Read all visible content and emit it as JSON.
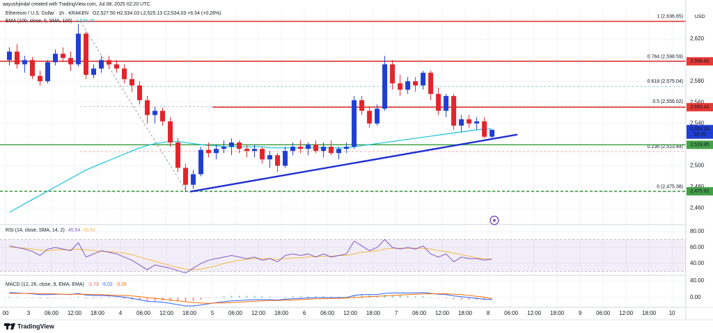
{
  "header": {
    "attribution": "aayushjindal created with TradingView.com, Jul 08, 2025 02:20 UTC",
    "brand": "TradingView"
  },
  "chart_data": {
    "type": "candlestick",
    "title": "Ethereum / U.S. Dollar · 1h · KRAKEN",
    "ohlc_legend": "O2,527.50 H2,534.03 L2,525.13 C2,534.03 +6.54 (+0.26%)",
    "currency": "USD",
    "x": [
      1,
      3,
      5,
      7,
      9,
      11,
      13,
      15,
      17,
      19,
      21,
      23,
      25,
      27,
      29,
      31,
      33,
      35,
      37,
      39,
      41,
      43,
      45,
      47,
      49,
      51,
      53,
      55,
      57,
      59,
      61,
      63,
      65,
      67,
      69,
      71,
      73,
      75,
      77,
      79,
      81,
      83,
      85,
      87,
      89,
      91,
      93,
      95,
      97,
      99,
      101,
      103,
      105,
      107,
      109,
      111,
      113,
      115,
      117,
      119,
      121,
      123,
      125,
      127
    ],
    "open": [
      2600,
      2608,
      2596,
      2600,
      2585,
      2580,
      2598,
      2606,
      2602,
      2596,
      2625,
      2586,
      2592,
      2600,
      2596,
      2592,
      2582,
      2576,
      2562,
      2548,
      2552,
      2542,
      2522,
      2498,
      2482,
      2492,
      2515,
      2512,
      2516,
      2518,
      2522,
      2516,
      2514,
      2516,
      2506,
      2510,
      2500,
      2514,
      2518,
      2516,
      2520,
      2514,
      2518,
      2512,
      2516,
      2518,
      2562,
      2552,
      2540,
      2554,
      2596,
      2578,
      2572,
      2580,
      2576,
      2588,
      2568,
      2552,
      2566,
      2538,
      2544,
      2540,
      2542,
      2527.5
    ],
    "high": [
      2612,
      2615,
      2604,
      2603,
      2590,
      2600,
      2610,
      2612,
      2608,
      2634,
      2627,
      2596,
      2604,
      2604,
      2600,
      2596,
      2588,
      2580,
      2566,
      2556,
      2555,
      2546,
      2526,
      2502,
      2496,
      2518,
      2522,
      2520,
      2524,
      2526,
      2524,
      2520,
      2520,
      2518,
      2514,
      2512,
      2518,
      2522,
      2524,
      2522,
      2524,
      2522,
      2524,
      2518,
      2522,
      2566,
      2566,
      2556,
      2558,
      2604,
      2600,
      2586,
      2584,
      2584,
      2590,
      2590,
      2574,
      2568,
      2568,
      2548,
      2548,
      2546,
      2546,
      2534.03
    ],
    "low": [
      2595,
      2592,
      2588,
      2582,
      2576,
      2578,
      2595,
      2598,
      2590,
      2594,
      2582,
      2583,
      2588,
      2592,
      2588,
      2578,
      2570,
      2558,
      2540,
      2540,
      2538,
      2518,
      2494,
      2475.38,
      2478,
      2490,
      2508,
      2506,
      2512,
      2510,
      2512,
      2508,
      2508,
      2502,
      2498,
      2494,
      2498,
      2510,
      2512,
      2510,
      2512,
      2508,
      2510,
      2506,
      2512,
      2516,
      2548,
      2536,
      2538,
      2552,
      2572,
      2566,
      2568,
      2570,
      2572,
      2562,
      2548,
      2546,
      2534,
      2532,
      2536,
      2534,
      2526,
      2525.13
    ],
    "close": [
      2608,
      2596,
      2600,
      2585,
      2580,
      2598,
      2606,
      2602,
      2596,
      2625,
      2586,
      2592,
      2600,
      2596,
      2592,
      2582,
      2576,
      2562,
      2548,
      2552,
      2542,
      2522,
      2498,
      2482,
      2492,
      2515,
      2512,
      2516,
      2518,
      2522,
      2516,
      2514,
      2516,
      2506,
      2510,
      2500,
      2514,
      2518,
      2516,
      2520,
      2514,
      2518,
      2512,
      2516,
      2518,
      2562,
      2552,
      2540,
      2554,
      2596,
      2578,
      2572,
      2580,
      2576,
      2588,
      2568,
      2552,
      2566,
      2538,
      2544,
      2540,
      2542,
      2527.5,
      2534.03
    ],
    "up_color": "#1f3fd3",
    "down_color": "#e3242b",
    "xlim": [
      -1.45,
      177.6
    ],
    "xticks": [
      {
        "value": 0,
        "label": "00"
      },
      {
        "value": 6,
        "label": "3"
      },
      {
        "value": 12,
        "label": "06:00"
      },
      {
        "value": 18,
        "label": "12:00"
      },
      {
        "value": 24,
        "label": "18:00"
      },
      {
        "value": 30,
        "label": "4"
      },
      {
        "value": 36,
        "label": "06:00"
      },
      {
        "value": 42,
        "label": "12:00"
      },
      {
        "value": 48,
        "label": "18:00"
      },
      {
        "value": 54,
        "label": "5"
      },
      {
        "value": 60,
        "label": "06:00"
      },
      {
        "value": 66,
        "label": "12:00"
      },
      {
        "value": 72,
        "label": "18:00"
      },
      {
        "value": 78,
        "label": "6"
      },
      {
        "value": 84,
        "label": "06:00"
      },
      {
        "value": 90,
        "label": "12:00"
      },
      {
        "value": 96,
        "label": "18:00"
      },
      {
        "value": 102,
        "label": "7"
      },
      {
        "value": 108,
        "label": "06:00"
      },
      {
        "value": 114,
        "label": "12:00"
      },
      {
        "value": 120,
        "label": "18:00"
      },
      {
        "value": 126,
        "label": "8"
      },
      {
        "value": 132,
        "label": "06:00"
      },
      {
        "value": 138,
        "label": "12:00"
      },
      {
        "value": 144,
        "label": "18:00"
      },
      {
        "value": 150,
        "label": "9"
      },
      {
        "value": 156,
        "label": "06:00"
      },
      {
        "value": 162,
        "label": "12:00"
      },
      {
        "value": 168,
        "label": "18:00"
      },
      {
        "value": 174,
        "label": "10"
      }
    ],
    "ylim": [
      2445,
      2647
    ],
    "yticks": [
      {
        "value": 2460,
        "label": "2,460"
      },
      {
        "value": 2480,
        "label": "2,480"
      },
      {
        "value": 2500,
        "label": "2,500"
      },
      {
        "value": 2520,
        "label": "2,520"
      },
      {
        "value": 2540,
        "label": "2,540"
      },
      {
        "value": 2560,
        "label": "2,560"
      },
      {
        "value": 2580,
        "label": "2,580"
      },
      {
        "value": 2600,
        "label": "2,600"
      },
      {
        "value": 2620,
        "label": "2,620"
      }
    ],
    "grid": true,
    "ema": {
      "name": "EMA (100, close, 0, SMA, 100)",
      "color": "#26c6da",
      "value_label": "2,535.05",
      "values": [
        2456,
        2460,
        2464,
        2468,
        2472,
        2476,
        2480,
        2484,
        2488,
        2492,
        2496,
        2499,
        2502,
        2505,
        2508,
        2511,
        2514,
        2517,
        2519,
        2521,
        2522,
        2523,
        2523,
        2522,
        2521,
        2520,
        2519,
        2519,
        2518,
        2518,
        2518,
        2518,
        2518,
        2518,
        2517,
        2517,
        2517,
        2517,
        2517,
        2517,
        2517,
        2517,
        2517,
        2517,
        2517,
        2518,
        2519,
        2520,
        2521,
        2522,
        2523,
        2524,
        2525,
        2526,
        2527,
        2528,
        2529,
        2530,
        2531,
        2532,
        2533,
        2534,
        2534.5,
        2535.05
      ]
    },
    "levels": [
      {
        "value": 2636.65,
        "color": "#e53935",
        "dash": false
      },
      {
        "value": 2598.82,
        "label": "2,598.82",
        "color": "#e53935",
        "dash": false
      },
      {
        "value": 2555.42,
        "label": "2,555.42",
        "color": "#e53935",
        "dash": false,
        "x_start": 54
      },
      {
        "value": 2519.85,
        "label": "2,519.85",
        "color": "#43a047",
        "dash": false
      },
      {
        "value": 2475.82,
        "label": "2,475.82",
        "color": "#43a047",
        "dash": true
      }
    ],
    "fib": {
      "x": [
        19.5,
        47.3
      ],
      "y": [
        2636.65,
        2475.38
      ],
      "levels": [
        {
          "value": 2636.65,
          "label": "1 (2,636.65)",
          "color": "#6b8cce"
        },
        {
          "value": 2598.59,
          "label": "0.764 (2,598.59)",
          "color": "#e53935"
        },
        {
          "value": 2575.04,
          "label": "0.618 (2,575.04)",
          "color": "#26a69a"
        },
        {
          "value": 2556.02,
          "label": "0.5 (2,556.02)",
          "color": "#787b86"
        },
        {
          "value": 2513.44,
          "label": "0.236 (2,513.44)",
          "color": "#ef5350"
        },
        {
          "value": 2475.38,
          "label": "0 (2,475.38)",
          "color": "#787b86"
        }
      ]
    },
    "trendline": {
      "x": [
        48.2,
        133.6
      ],
      "y": [
        2475.5,
        2529.5
      ],
      "color": "#1f2fd0"
    },
    "last": {
      "value_label": "2,534.03",
      "countdown": "39:39",
      "color": "#1f3fd3"
    },
    "rsi": {
      "name": "RSI (14, close, SMA, 14, 2)",
      "color": "#7e57c2",
      "band": [
        30,
        70
      ],
      "ylim": [
        26,
        87
      ],
      "yticks": [
        {
          "value": 40,
          "label": "40.00"
        },
        {
          "value": 60,
          "label": "60.00"
        },
        {
          "value": 80,
          "label": "80.00"
        }
      ],
      "values": [
        62,
        60,
        58,
        55,
        50,
        58,
        60,
        58,
        56,
        66,
        48,
        52,
        56,
        54,
        52,
        48,
        44,
        38,
        32,
        38,
        36,
        34,
        31,
        28,
        34,
        40,
        44,
        46,
        48,
        50,
        48,
        46,
        48,
        44,
        46,
        42,
        50,
        52,
        50,
        52,
        48,
        52,
        48,
        50,
        52,
        68,
        62,
        56,
        60,
        70,
        60,
        58,
        60,
        58,
        62,
        52,
        48,
        52,
        42,
        48,
        46,
        46,
        44,
        45.54
      ],
      "sma": {
        "color": "#f5b841",
        "values": [
          60,
          60,
          59,
          58,
          57,
          56,
          57,
          57,
          57,
          58,
          57,
          56,
          55,
          55,
          54,
          53,
          51,
          48,
          45,
          43,
          40,
          37,
          35,
          33,
          32,
          33,
          35,
          37,
          40,
          42,
          44,
          45,
          46,
          46,
          46,
          45,
          46,
          47,
          47,
          48,
          49,
          49,
          49,
          50,
          50,
          52,
          54,
          55,
          56,
          58,
          59,
          59,
          59,
          59,
          59,
          58,
          56,
          55,
          53,
          51,
          49,
          47,
          46,
          45.42
        ]
      }
    },
    "macd": {
      "name": "MACD (12, 26, close, 9, EMA, EMA)",
      "ylim": [
        -20,
        50
      ],
      "yticks": [
        {
          "value": 0,
          "label": "0.00"
        },
        {
          "value": 40,
          "label": "40.00"
        }
      ],
      "histogram": {
        "up_color": "#26a69a",
        "down_color": "#ef5350",
        "values": [
          2,
          1,
          0,
          -1,
          -2,
          -2,
          -1,
          0,
          -1,
          2,
          -2,
          -2,
          -2,
          -2,
          -2,
          -4,
          -6,
          -7,
          -9,
          -8,
          -7,
          -8,
          -9,
          -10,
          -8,
          -5,
          -1,
          1,
          3,
          4,
          4,
          4,
          4,
          3,
          2,
          1,
          2,
          3,
          3,
          3,
          3,
          3,
          2,
          2,
          1,
          5,
          6,
          5,
          4,
          6,
          6,
          5,
          4,
          3,
          3,
          1,
          -1,
          -2,
          -4,
          -5,
          -5,
          -5,
          -5,
          -1.73
        ]
      },
      "macd": {
        "color": "#2962ff",
        "values": [
          12,
          11,
          10,
          9,
          7,
          7,
          8,
          8,
          7,
          10,
          6,
          5,
          5,
          4,
          3,
          1,
          -2,
          -5,
          -9,
          -10,
          -11,
          -14,
          -17,
          -20,
          -20,
          -18,
          -15,
          -12,
          -10,
          -8,
          -7,
          -6,
          -5,
          -5,
          -5,
          -6,
          -4,
          -3,
          -2,
          -1,
          0,
          0,
          0,
          0,
          0,
          5,
          7,
          7,
          7,
          10,
          11,
          11,
          11,
          11,
          12,
          10,
          8,
          7,
          4,
          2,
          0,
          -2,
          -4,
          -5.02
        ]
      },
      "signal": {
        "color": "#ff6d00",
        "values": [
          10,
          10,
          10,
          10,
          9,
          9,
          9,
          8,
          8,
          8,
          8,
          7,
          7,
          6,
          5,
          5,
          4,
          2,
          0,
          -2,
          -4,
          -6,
          -8,
          -10,
          -12,
          -13,
          -14,
          -13,
          -13,
          -12,
          -11,
          -10,
          -9,
          -8,
          -7,
          -7,
          -6,
          -6,
          -5,
          -4,
          -3,
          -3,
          -2,
          -2,
          -1,
          0,
          1,
          2,
          3,
          4,
          5,
          6,
          7,
          8,
          9,
          9,
          9,
          9,
          8,
          7,
          5,
          3,
          1,
          -3.29
        ]
      }
    }
  }
}
